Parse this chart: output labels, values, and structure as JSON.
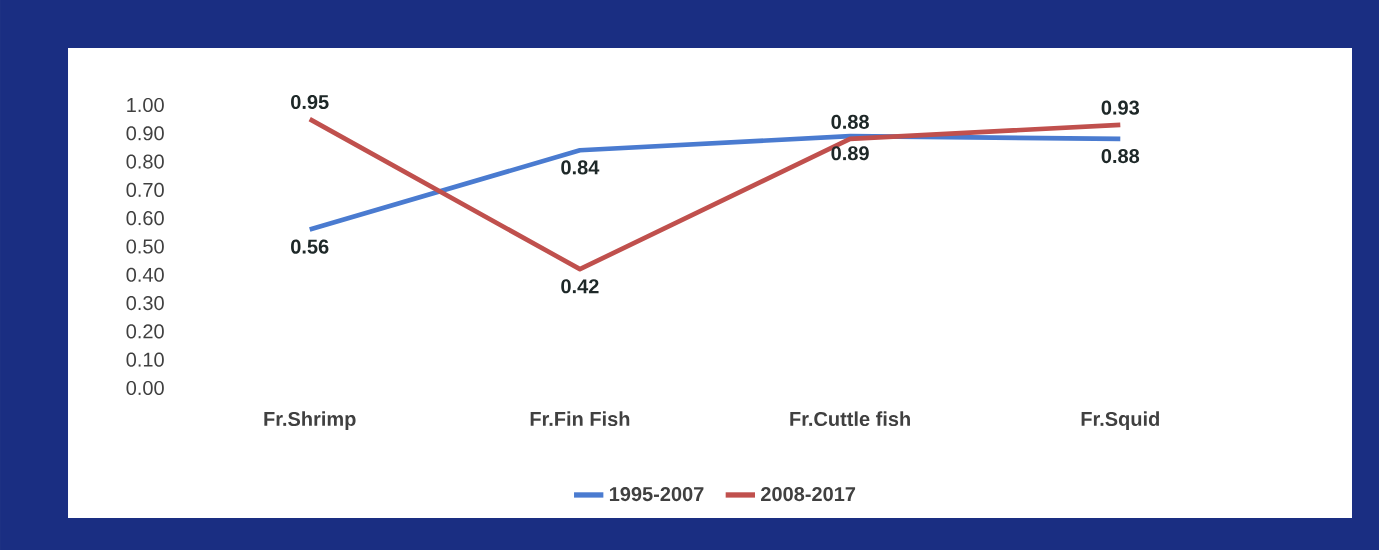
{
  "chart_data": {
    "type": "line",
    "categories": [
      "Fr.Shrimp",
      "Fr.Fin Fish",
      "Fr.Cuttle fish",
      "Fr.Squid"
    ],
    "series": [
      {
        "name": "1995-2007",
        "color": "#4a7bd0",
        "values": [
          0.56,
          0.84,
          0.89,
          0.88
        ]
      },
      {
        "name": "2008-2017",
        "color": "#c0504d",
        "values": [
          0.95,
          0.42,
          0.88,
          0.93
        ]
      }
    ],
    "ylim": [
      0,
      1
    ],
    "yticks": [
      {
        "value": 0,
        "label": "0.00"
      },
      {
        "value": 0.1,
        "label": "0.10"
      },
      {
        "value": 0.2,
        "label": "0.20"
      },
      {
        "value": 0.3,
        "label": "0.30"
      },
      {
        "value": 0.4,
        "label": "0.40"
      },
      {
        "value": 0.5,
        "label": "0.50"
      },
      {
        "value": 0.6,
        "label": "0.60"
      },
      {
        "value": 0.7,
        "label": "0.70"
      },
      {
        "value": 0.8,
        "label": "0.80"
      },
      {
        "value": 0.9,
        "label": "0.90"
      },
      {
        "value": 1,
        "label": "1.00"
      }
    ],
    "data_labels": true,
    "legend": "bottom",
    "grid": false,
    "marker": "none",
    "line_style": "solid"
  }
}
